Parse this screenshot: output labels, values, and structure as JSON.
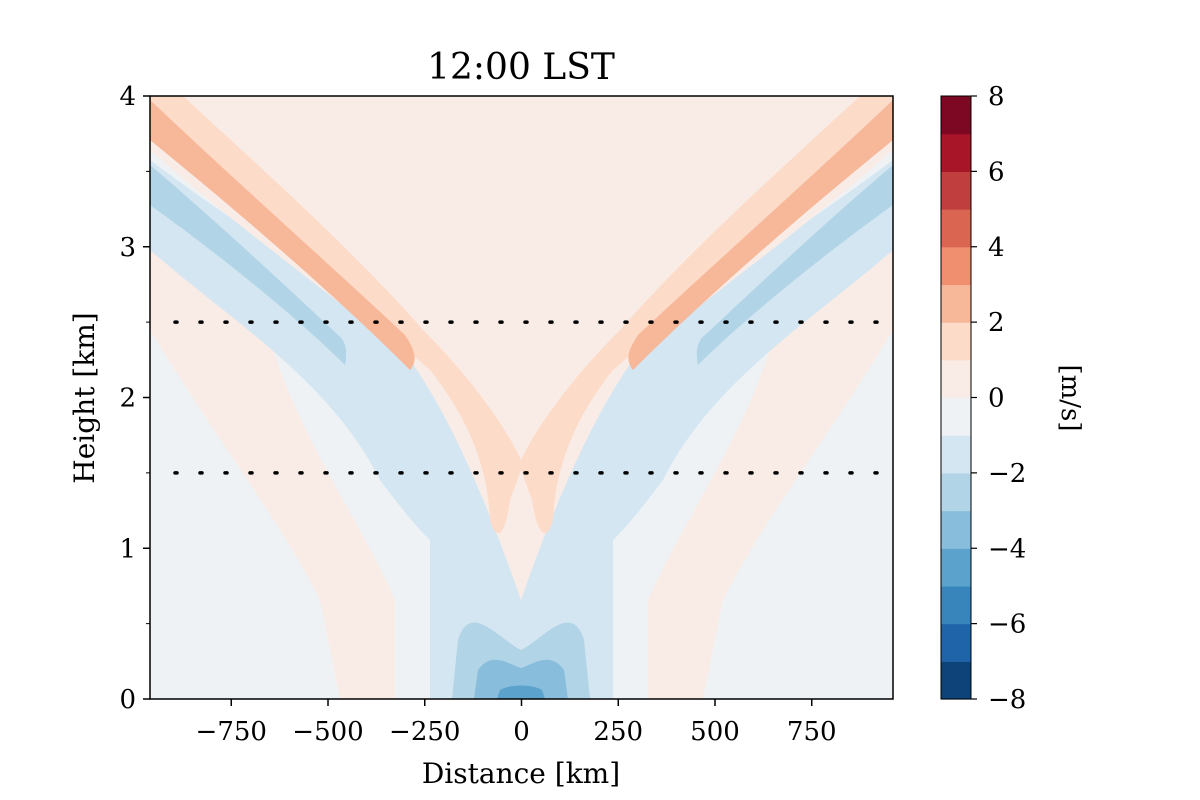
{
  "chart_data": {
    "type": "contourf",
    "title": "12:00 LST",
    "xlabel": "Distance [km]",
    "ylabel": "Height [km]",
    "xlim": [
      -960,
      960
    ],
    "ylim": [
      0,
      4
    ],
    "x_ticks": [
      -750,
      -500,
      -250,
      0,
      250,
      500,
      750
    ],
    "x_tick_labels": [
      "−750",
      "−500",
      "−250",
      "0",
      "250",
      "500",
      "750"
    ],
    "y_ticks": [
      0,
      1,
      2,
      3,
      4
    ],
    "y_tick_labels": [
      "0",
      "1",
      "2",
      "3",
      "4"
    ],
    "y_minor_ticks": [
      0.5,
      1.5,
      2.5,
      3.5
    ],
    "reference_lines": [
      {
        "height_km": 1.5,
        "style": "dotted"
      },
      {
        "height_km": 2.5,
        "style": "dotted"
      }
    ],
    "colorbar": {
      "label": "[m/s]",
      "levels": [
        -8,
        -7,
        -6,
        -5,
        -4,
        -3,
        -2,
        -1,
        0,
        1,
        2,
        3,
        4,
        5,
        6,
        7,
        8
      ],
      "tick_values": [
        -8,
        -6,
        -4,
        -2,
        0,
        2,
        4,
        6,
        8
      ],
      "tick_labels": [
        "−8",
        "−6",
        "−4",
        "−2",
        "0",
        "2",
        "4",
        "6",
        "8"
      ],
      "colors": [
        "#0e4379",
        "#1f63a8",
        "#3885bc",
        "#5ba2cc",
        "#88bedc",
        "#b1d4e7",
        "#d4e6f1",
        "#eef2f5",
        "#f9ece6",
        "#fcdbc8",
        "#f7b799",
        "#ef8f70",
        "#da6551",
        "#c13e3e",
        "#a81529",
        "#7c0823"
      ]
    },
    "field_description": "Symmetric wind field: inclined positive (2 to 4 m/s) and negative (-2 to -4 m/s) jets rising outward from about |x|=250 km at 2.2 km to the corners at 4 km; negative core of about -6 m/s near the surface at x=0."
  }
}
